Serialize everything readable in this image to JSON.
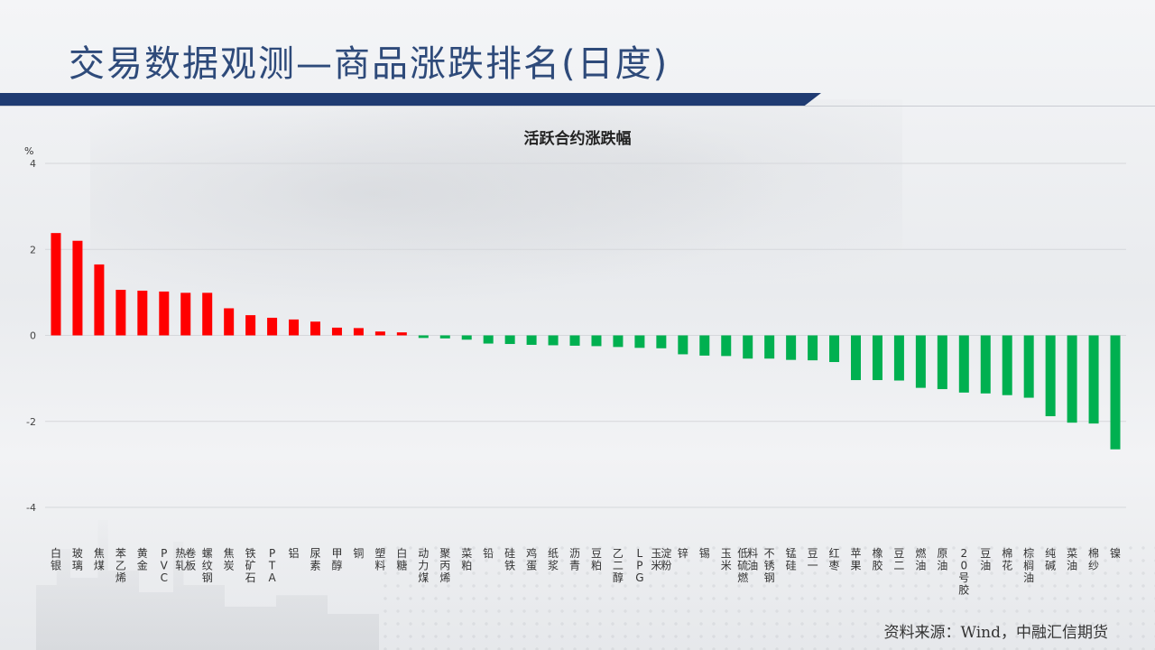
{
  "header": {
    "title": "交易数据观测—商品涨跌排名(日度)"
  },
  "source": "资料来源：Wind，中融汇信期货",
  "colors": {
    "positive": "#ff0000",
    "negative": "#00b050",
    "header_bar": "#1f3b72",
    "title": "#2e4a7a"
  },
  "chart_data": {
    "type": "bar",
    "title": "活跃合约涨跌幅",
    "ylabel": "%",
    "ylim": [
      -4,
      4
    ],
    "yticks": [
      4,
      2,
      0,
      -2,
      -4
    ],
    "grid": true,
    "categories": [
      "白银",
      "玻璃",
      "焦煤",
      "苯乙烯",
      "黄金",
      "PVC",
      "热轧卷板",
      "螺纹钢",
      "焦炭",
      "铁矿石",
      "PTA",
      "铝",
      "尿素",
      "甲醇",
      "铜",
      "塑料",
      "白糖",
      "动力煤",
      "聚丙烯",
      "菜粕",
      "铅",
      "硅铁",
      "鸡蛋",
      "纸浆",
      "沥青",
      "豆粕",
      "乙二醇",
      "LPG",
      "玉米淀粉",
      "锌",
      "锡",
      "玉米",
      "低硫燃料油",
      "不锈钢",
      "锰硅",
      "豆一",
      "红枣",
      "苹果",
      "橡胶",
      "豆二",
      "燃油",
      "原油",
      "20号胶",
      "豆油",
      "棉花",
      "棕榈油",
      "纯碱",
      "菜油",
      "棉纱",
      "镍"
    ],
    "values": [
      2.38,
      2.2,
      1.65,
      1.06,
      1.04,
      1.02,
      0.99,
      0.99,
      0.63,
      0.47,
      0.41,
      0.37,
      0.32,
      0.18,
      0.17,
      0.09,
      0.07,
      -0.06,
      -0.07,
      -0.1,
      -0.19,
      -0.2,
      -0.22,
      -0.23,
      -0.24,
      -0.25,
      -0.27,
      -0.29,
      -0.3,
      -0.44,
      -0.47,
      -0.48,
      -0.54,
      -0.54,
      -0.57,
      -0.58,
      -0.62,
      -1.04,
      -1.04,
      -1.05,
      -1.22,
      -1.25,
      -1.33,
      -1.35,
      -1.39,
      -1.45,
      -1.88,
      -2.03,
      -2.05,
      -2.65
    ]
  }
}
